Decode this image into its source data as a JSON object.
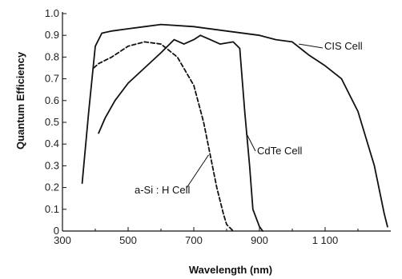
{
  "chart_data": {
    "type": "line",
    "title": "",
    "xlabel": "Wavelength (nm)",
    "ylabel": "Quantum Efficiency",
    "xlim": [
      300,
      1300
    ],
    "ylim": [
      0,
      1.0
    ],
    "x_ticks": [
      300,
      500,
      700,
      900,
      1100
    ],
    "x_tick_labels": [
      "300",
      "500",
      "700",
      "900",
      "1 100"
    ],
    "y_ticks": [
      0,
      0.1,
      0.2,
      0.3,
      0.4,
      0.5,
      0.6,
      0.7,
      0.8,
      0.9,
      1.0
    ],
    "y_tick_labels": [
      "0",
      "0.1",
      "0.2",
      "0.3",
      "0.4",
      "0.5",
      "0.6",
      "0.7",
      "0.8",
      "0.9",
      "1.0"
    ],
    "grid": false,
    "series": [
      {
        "name": "CIS Cell",
        "style": "solid",
        "color": "#111111",
        "points": [
          [
            360,
            0.22
          ],
          [
            380,
            0.55
          ],
          [
            400,
            0.85
          ],
          [
            420,
            0.91
          ],
          [
            450,
            0.92
          ],
          [
            500,
            0.93
          ],
          [
            550,
            0.94
          ],
          [
            600,
            0.95
          ],
          [
            700,
            0.94
          ],
          [
            800,
            0.92
          ],
          [
            900,
            0.9
          ],
          [
            950,
            0.88
          ],
          [
            1000,
            0.87
          ],
          [
            1050,
            0.81
          ],
          [
            1100,
            0.76
          ],
          [
            1150,
            0.7
          ],
          [
            1200,
            0.55
          ],
          [
            1250,
            0.3
          ],
          [
            1280,
            0.08
          ],
          [
            1290,
            0.02
          ]
        ]
      },
      {
        "name": "CdTe Cell",
        "style": "solid",
        "color": "#111111",
        "points": [
          [
            410,
            0.45
          ],
          [
            430,
            0.52
          ],
          [
            460,
            0.6
          ],
          [
            500,
            0.68
          ],
          [
            550,
            0.75
          ],
          [
            600,
            0.82
          ],
          [
            640,
            0.88
          ],
          [
            670,
            0.86
          ],
          [
            700,
            0.88
          ],
          [
            720,
            0.9
          ],
          [
            750,
            0.88
          ],
          [
            780,
            0.86
          ],
          [
            820,
            0.87
          ],
          [
            840,
            0.84
          ],
          [
            855,
            0.55
          ],
          [
            870,
            0.3
          ],
          [
            880,
            0.1
          ],
          [
            900,
            0.02
          ],
          [
            910,
            0.0
          ]
        ]
      },
      {
        "name": "a-Si : H Cell",
        "style": "dashed",
        "color": "#111111",
        "points": [
          [
            395,
            0.75
          ],
          [
            410,
            0.77
          ],
          [
            450,
            0.8
          ],
          [
            500,
            0.85
          ],
          [
            550,
            0.87
          ],
          [
            600,
            0.86
          ],
          [
            650,
            0.8
          ],
          [
            700,
            0.67
          ],
          [
            730,
            0.5
          ],
          [
            750,
            0.35
          ],
          [
            770,
            0.2
          ],
          [
            790,
            0.08
          ],
          [
            800,
            0.03
          ],
          [
            820,
            0.0
          ]
        ]
      }
    ],
    "annotations": [
      {
        "text": "CIS Cell",
        "series": "CIS Cell"
      },
      {
        "text": "CdTe Cell",
        "series": "CdTe Cell"
      },
      {
        "text": "a-Si : H Cell",
        "series": "a-Si : H Cell"
      }
    ]
  }
}
